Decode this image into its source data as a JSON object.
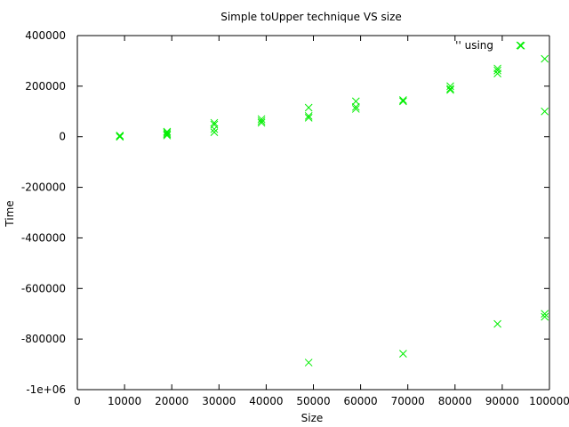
{
  "chart_data": {
    "type": "scatter",
    "title": "Simple toUpper technique VS size",
    "xlabel": "Size",
    "ylabel": "Time",
    "xlim": [
      0,
      100000
    ],
    "ylim": [
      -1000000,
      400000
    ],
    "x_ticks": [
      0,
      10000,
      20000,
      30000,
      40000,
      50000,
      60000,
      70000,
      80000,
      90000,
      100000
    ],
    "x_tick_labels": [
      "0",
      "10000",
      "20000",
      "30000",
      "40000",
      "50000",
      "60000",
      "70000",
      "80000",
      "90000",
      "100000"
    ],
    "y_ticks": [
      400000,
      200000,
      0,
      -200000,
      -400000,
      -600000,
      -800000,
      -1000000
    ],
    "y_tick_labels": [
      "400000",
      "200000",
      "0",
      "-200000",
      "-400000",
      "-600000",
      "-800000",
      "-1e+06"
    ],
    "grid": false,
    "legend_position": "top-right",
    "series": [
      {
        "name": "'' using",
        "color": "#00ee00",
        "marker": "x",
        "points": [
          [
            9000,
            2000
          ],
          [
            9000,
            5000
          ],
          [
            9000,
            0
          ],
          [
            19000,
            20000
          ],
          [
            19000,
            10000
          ],
          [
            19000,
            5000
          ],
          [
            19000,
            15000
          ],
          [
            29000,
            55000
          ],
          [
            29000,
            48000
          ],
          [
            29000,
            30000
          ],
          [
            29000,
            18000
          ],
          [
            39000,
            70000
          ],
          [
            39000,
            62000
          ],
          [
            39000,
            55000
          ],
          [
            49000,
            115000
          ],
          [
            49000,
            82000
          ],
          [
            49000,
            75000
          ],
          [
            49000,
            -893000
          ],
          [
            59000,
            140000
          ],
          [
            59000,
            118000
          ],
          [
            59000,
            110000
          ],
          [
            69000,
            145000
          ],
          [
            69000,
            140000
          ],
          [
            69000,
            -858000
          ],
          [
            79000,
            200000
          ],
          [
            79000,
            190000
          ],
          [
            79000,
            185000
          ],
          [
            89000,
            270000
          ],
          [
            89000,
            262000
          ],
          [
            89000,
            250000
          ],
          [
            89000,
            -740000
          ],
          [
            94000,
            360000
          ],
          [
            99000,
            308000
          ],
          [
            99000,
            100000
          ],
          [
            99000,
            -700000
          ],
          [
            99000,
            -712000
          ]
        ]
      }
    ]
  }
}
